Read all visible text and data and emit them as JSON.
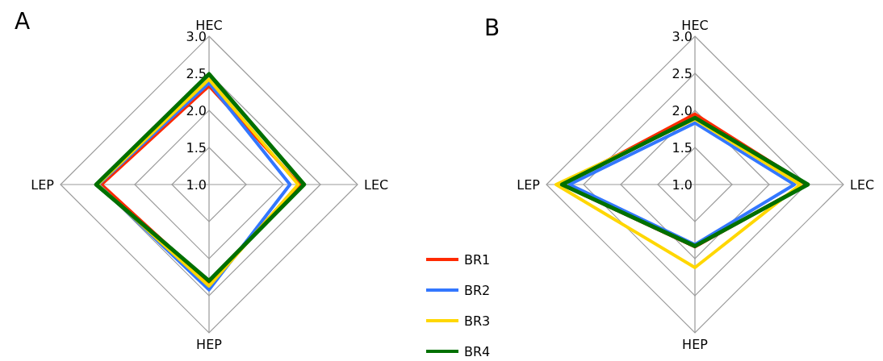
{
  "chart_data": [
    {
      "type": "radar",
      "title": "A",
      "categories": [
        "HEC",
        "LEC",
        "HEP",
        "LEP"
      ],
      "ylim": [
        1.0,
        3.0
      ],
      "yticks": [
        {
          "value": 1,
          "label": "1.0"
        },
        {
          "value": 1.5,
          "label": "1.5"
        },
        {
          "value": 2,
          "label": "2.0"
        },
        {
          "value": 2.5,
          "label": "2.5"
        },
        {
          "value": 3,
          "label": "3.0"
        }
      ],
      "grid": true,
      "marker": "none",
      "series": [
        {
          "color": "#ff2a00",
          "values": [
            2.33,
            2.22,
            2.33,
            2.45
          ]
        },
        {
          "color": "#3377ff",
          "values": [
            2.37,
            2.09,
            2.42,
            2.49
          ]
        },
        {
          "color": "#ffd700",
          "values": [
            2.42,
            2.2,
            2.37,
            2.5
          ]
        },
        {
          "color": "#007000",
          "values": [
            2.49,
            2.28,
            2.3,
            2.52
          ]
        }
      ]
    },
    {
      "type": "radar",
      "title": "B",
      "categories": [
        "HEC",
        "LEC",
        "HEP",
        "LEP"
      ],
      "ylim": [
        1.0,
        3.0
      ],
      "yticks": [
        {
          "value": 1,
          "label": "1.0"
        },
        {
          "value": 1.5,
          "label": "1.5"
        },
        {
          "value": 2,
          "label": "2.0"
        },
        {
          "value": 2.5,
          "label": "2.5"
        },
        {
          "value": 3,
          "label": "3.0"
        }
      ],
      "grid": true,
      "legend": "bottom left",
      "marker": "none",
      "series": [
        {
          "name": "BR1",
          "color": "#ff2a00",
          "values": [
            1.95,
            2.5,
            1.84,
            2.79
          ]
        },
        {
          "name": "BR2",
          "color": "#3377ff",
          "values": [
            1.83,
            2.34,
            1.81,
            2.69
          ]
        },
        {
          "name": "BR3",
          "color": "#ffd700",
          "values": [
            1.88,
            2.42,
            2.12,
            2.87
          ]
        },
        {
          "name": "BR4",
          "color": "#007000",
          "values": [
            1.9,
            2.52,
            1.83,
            2.79
          ]
        }
      ]
    }
  ]
}
